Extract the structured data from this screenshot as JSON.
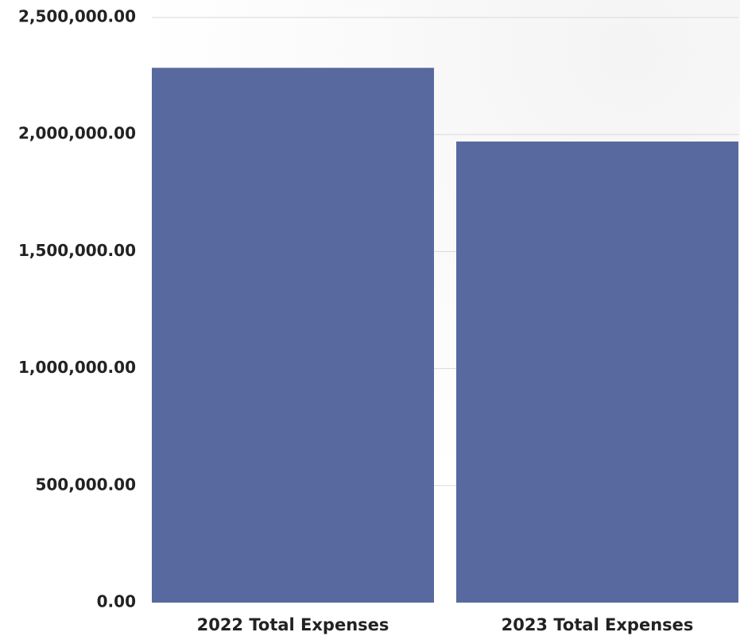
{
  "chart_data": {
    "type": "bar",
    "categories": [
      "2022 Total Expenses",
      "2023 Total Expenses"
    ],
    "values": [
      2285000,
      1970000
    ],
    "ylim": [
      0,
      2500000
    ],
    "yticks": [
      0,
      500000,
      1000000,
      1500000,
      2000000,
      2500000
    ],
    "ytick_labels": [
      "0.00",
      "500,000.00",
      "1,000,000.00",
      "1,500,000.00",
      "2,000,000.00",
      "2,500,000.00"
    ],
    "title": "",
    "xlabel": "",
    "ylabel": "",
    "grid": true,
    "legend": "none",
    "colors": {
      "bar": "#58699f",
      "grid": "#d9d9d9",
      "text": "#222222"
    }
  }
}
